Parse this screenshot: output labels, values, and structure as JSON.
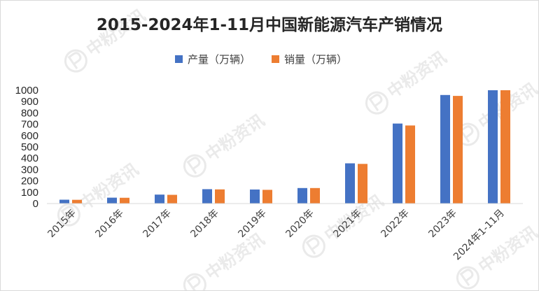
{
  "chart_data": {
    "type": "bar",
    "title": "2015-2024年1-11月中国新能源汽车产销情况",
    "xlabel": "",
    "ylabel": "",
    "categories": [
      "2015年",
      "2016年",
      "2017年",
      "2018年",
      "2019年",
      "2020年",
      "2021年",
      "2022年",
      "2023年",
      "2024年1-11月"
    ],
    "series": [
      {
        "name": "产量（万辆）",
        "color": "#4472c4",
        "values": [
          34,
          52,
          79,
          127,
          124,
          137,
          355,
          706,
          958,
          1000
        ]
      },
      {
        "name": "销量（万辆）",
        "color": "#ed7d31",
        "values": [
          33,
          51,
          77,
          125,
          121,
          137,
          350,
          689,
          950,
          1000
        ]
      }
    ],
    "yticks": [
      0,
      100,
      200,
      300,
      400,
      500,
      600,
      700,
      800,
      900,
      1000
    ],
    "ylim": [
      0,
      1000
    ],
    "grid": false,
    "legend": "top-center"
  },
  "watermark": {
    "text": "中粉资讯",
    "icon": "p-logo-icon"
  }
}
